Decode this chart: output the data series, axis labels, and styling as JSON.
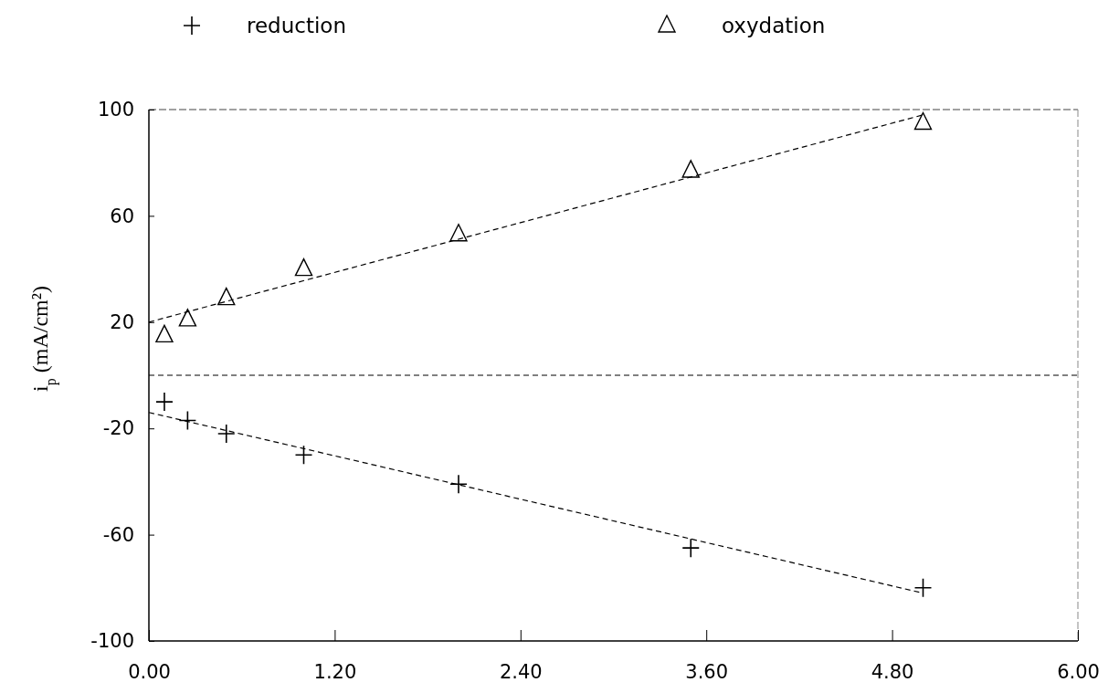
{
  "chart_data": {
    "type": "scatter",
    "ylabel": "i$_{p}$ (mA/cm²)",
    "xlim": [
      0,
      6
    ],
    "xticks": [
      {
        "value": 0,
        "label": "0.00"
      },
      {
        "value": 1.2,
        "label": "1.20"
      },
      {
        "value": 2.4,
        "label": "2.40"
      },
      {
        "value": 3.6,
        "label": "3.60"
      },
      {
        "value": 4.8,
        "label": "4.80"
      },
      {
        "value": 6,
        "label": "6.00"
      }
    ],
    "ylim": [
      -100,
      100
    ],
    "yticks": [
      -100,
      -60,
      -20,
      20,
      60,
      100
    ],
    "legend": "top",
    "grid": false,
    "ref_lines": [
      {
        "axis": "y",
        "value": 0,
        "color": "#000000",
        "line_style": "dashed"
      }
    ],
    "series": [
      {
        "name": "reduction",
        "marker": "cross",
        "color": "#000000",
        "x": [
          0.1,
          0.25,
          0.5,
          1,
          2,
          3.5,
          5
        ],
        "values": [
          -10,
          -17,
          -22,
          -30,
          -41,
          -65,
          -80
        ]
      },
      {
        "name": "oxydation",
        "marker": "triangle",
        "color": "#000000",
        "x": [
          0.1,
          0.25,
          0.5,
          1,
          2,
          3.5,
          5
        ],
        "values": [
          15,
          21,
          29,
          40,
          53,
          77,
          95
        ]
      },
      {
        "type": "line",
        "line_style": "dashed",
        "marker": "none",
        "color": "#000000",
        "x": [
          0,
          5
        ],
        "values": [
          -14,
          -82
        ]
      },
      {
        "type": "line",
        "line_style": "dashed",
        "marker": "none",
        "color": "#000000",
        "x": [
          0,
          5
        ],
        "values": [
          20,
          98
        ]
      }
    ]
  }
}
